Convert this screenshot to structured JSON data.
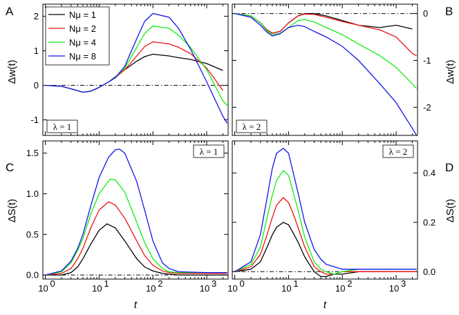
{
  "chart_data": [
    {
      "panel": "A",
      "type": "line",
      "xscale": "log",
      "xlim": [
        0.9,
        2500
      ],
      "ylim": [
        -1.45,
        2.35
      ],
      "yticks": [
        {
          "v": -1,
          "label": "-1"
        },
        {
          "v": 0,
          "label": "0"
        },
        {
          "v": 1,
          "label": "1"
        },
        {
          "v": 2,
          "label": "2"
        }
      ],
      "xtick_labels": [],
      "y_axis_side": "left",
      "ylabel": "Δw(t)",
      "xlabel": "",
      "reference_line": 0,
      "box_label": "λ = 1",
      "box_position": "bottom-left",
      "series": [
        {
          "name": "Nμ = 1",
          "color": "#000000",
          "x": [
            1,
            2,
            3,
            5,
            7,
            10,
            15,
            20,
            30,
            50,
            70,
            100,
            200,
            300,
            500,
            1000,
            2000
          ],
          "y": [
            0,
            -0.03,
            -0.1,
            -0.2,
            -0.17,
            -0.06,
            0.1,
            0.24,
            0.45,
            0.7,
            0.83,
            0.9,
            0.85,
            0.8,
            0.75,
            0.63,
            0.43
          ]
        },
        {
          "name": "Nμ = 2",
          "color": "#ee1111",
          "x": [
            1,
            2,
            3,
            5,
            7,
            10,
            15,
            20,
            30,
            50,
            70,
            100,
            200,
            300,
            500,
            1000,
            2000
          ],
          "y": [
            0,
            -0.03,
            -0.1,
            -0.2,
            -0.17,
            -0.06,
            0.1,
            0.22,
            0.45,
            0.85,
            1.12,
            1.26,
            1.2,
            1.1,
            0.92,
            0.5,
            -0.15
          ]
        },
        {
          "name": "Nμ = 4",
          "color": "#11ee11",
          "x": [
            1,
            2,
            3,
            5,
            7,
            10,
            15,
            20,
            30,
            50,
            70,
            100,
            200,
            300,
            500,
            1000,
            2000,
            2400
          ],
          "y": [
            0,
            -0.03,
            -0.1,
            -0.2,
            -0.17,
            -0.06,
            0.1,
            0.22,
            0.5,
            1.1,
            1.5,
            1.72,
            1.65,
            1.45,
            1.1,
            0.45,
            -0.45,
            -0.58
          ]
        },
        {
          "name": "Nμ = 8",
          "color": "#1111ee",
          "x": [
            1,
            2,
            3,
            5,
            7,
            10,
            15,
            20,
            30,
            50,
            70,
            100,
            200,
            300,
            500,
            1000,
            2000,
            2400
          ],
          "y": [
            0,
            -0.03,
            -0.1,
            -0.2,
            -0.17,
            -0.06,
            0.1,
            0.22,
            0.55,
            1.35,
            1.85,
            2.08,
            1.97,
            1.65,
            1.05,
            0.1,
            -0.9,
            -1.1
          ]
        }
      ]
    },
    {
      "panel": "B",
      "type": "line",
      "xscale": "log",
      "xlim": [
        0.9,
        2500
      ],
      "ylim": [
        -2.6,
        0.2
      ],
      "yticks": [
        {
          "v": -2,
          "label": "-2"
        },
        {
          "v": -1,
          "label": "-1"
        },
        {
          "v": 0,
          "label": "0"
        }
      ],
      "xtick_labels": [],
      "y_axis_side": "right",
      "ylabel": "Δw(t)",
      "xlabel": "",
      "reference_line": 0,
      "box_label": "λ = 2",
      "box_position": "bottom-left",
      "series": [
        {
          "name": "Nμ = 1",
          "color": "#000000",
          "x": [
            1,
            2,
            3,
            4,
            5,
            7,
            10,
            15,
            20,
            30,
            50,
            100,
            200,
            500,
            1000,
            2000
          ],
          "y": [
            0,
            -0.05,
            -0.2,
            -0.35,
            -0.42,
            -0.38,
            -0.2,
            -0.05,
            0,
            0,
            -0.05,
            -0.15,
            -0.25,
            -0.3,
            -0.25,
            -0.33
          ]
        },
        {
          "name": "Nμ = 2",
          "color": "#ee1111",
          "x": [
            1,
            2,
            3,
            4,
            5,
            7,
            10,
            15,
            20,
            30,
            50,
            100,
            200,
            500,
            1000,
            2000,
            2400
          ],
          "y": [
            0,
            -0.05,
            -0.2,
            -0.35,
            -0.42,
            -0.38,
            -0.2,
            -0.05,
            -0.01,
            -0.02,
            -0.08,
            -0.17,
            -0.25,
            -0.35,
            -0.5,
            -0.85,
            -0.9
          ]
        },
        {
          "name": "Nμ = 4",
          "color": "#11ee11",
          "x": [
            1,
            2,
            3,
            4,
            5,
            7,
            10,
            15,
            20,
            30,
            50,
            100,
            200,
            500,
            1000,
            2000,
            2400
          ],
          "y": [
            0,
            -0.05,
            -0.2,
            -0.37,
            -0.45,
            -0.42,
            -0.3,
            -0.15,
            -0.13,
            -0.18,
            -0.3,
            -0.45,
            -0.65,
            -0.9,
            -1.15,
            -1.5,
            -1.6
          ]
        },
        {
          "name": "Nμ = 8",
          "color": "#1111ee",
          "x": [
            1,
            2,
            3,
            4,
            5,
            7,
            10,
            15,
            20,
            30,
            50,
            100,
            200,
            500,
            1000,
            2000,
            2400
          ],
          "y": [
            0,
            -0.08,
            -0.25,
            -0.4,
            -0.48,
            -0.43,
            -0.3,
            -0.25,
            -0.28,
            -0.38,
            -0.5,
            -0.7,
            -1.0,
            -1.5,
            -1.9,
            -2.45,
            -2.6
          ]
        }
      ]
    },
    {
      "panel": "C",
      "type": "line",
      "xscale": "log",
      "xlim": [
        0.9,
        2500
      ],
      "ylim": [
        -0.05,
        1.65
      ],
      "yticks": [
        {
          "v": 0.0,
          "label": "0.0"
        },
        {
          "v": 0.5,
          "label": "0.5"
        },
        {
          "v": 1.0,
          "label": "1.0"
        },
        {
          "v": 1.5,
          "label": "1.5"
        }
      ],
      "xtick_labels": [
        "10",
        "10",
        "10",
        "10"
      ],
      "xtick_exponents": [
        "0",
        "1",
        "2",
        "3"
      ],
      "y_axis_side": "left",
      "ylabel": "ΔS(t)",
      "xlabel": "t",
      "reference_line": 0,
      "box_label": "λ = 1",
      "box_position": "top-right",
      "series": [
        {
          "name": "Nμ = 1",
          "color": "#000000",
          "x": [
            1,
            2,
            3,
            4,
            5,
            7,
            10,
            14,
            20,
            30,
            50,
            70,
            100,
            150,
            200,
            300,
            1000,
            2400
          ],
          "y": [
            0,
            0,
            0.03,
            0.1,
            0.2,
            0.38,
            0.55,
            0.63,
            0.58,
            0.42,
            0.2,
            0.1,
            0.05,
            0.02,
            0.01,
            0,
            0,
            0
          ]
        },
        {
          "name": "Nμ = 2",
          "color": "#ee1111",
          "x": [
            1,
            2,
            3,
            4,
            5,
            7,
            10,
            15,
            20,
            30,
            50,
            70,
            100,
            150,
            200,
            300,
            1000,
            2400
          ],
          "y": [
            0,
            0.02,
            0.08,
            0.2,
            0.33,
            0.58,
            0.8,
            0.9,
            0.86,
            0.7,
            0.42,
            0.24,
            0.12,
            0.05,
            0.03,
            0.02,
            0.02,
            0.02
          ]
        },
        {
          "name": "Nμ = 4",
          "color": "#11ee11",
          "x": [
            1,
            2,
            3,
            4,
            5,
            7,
            10,
            16,
            20,
            30,
            50,
            70,
            100,
            150,
            200,
            300,
            1000,
            2400
          ],
          "y": [
            0,
            0.04,
            0.15,
            0.3,
            0.45,
            0.75,
            1.0,
            1.18,
            1.17,
            1.02,
            0.65,
            0.4,
            0.2,
            0.08,
            0.04,
            0.03,
            0.03,
            0.03
          ]
        },
        {
          "name": "Nμ = 8",
          "color": "#1111ee",
          "x": [
            1,
            2,
            3,
            4,
            5,
            7,
            10,
            15,
            20,
            24,
            30,
            50,
            70,
            100,
            150,
            200,
            300,
            1000,
            2400
          ],
          "y": [
            0,
            0.05,
            0.17,
            0.33,
            0.5,
            0.85,
            1.2,
            1.45,
            1.54,
            1.55,
            1.5,
            1.15,
            0.8,
            0.42,
            0.15,
            0.08,
            0.04,
            0.03,
            0.03
          ]
        }
      ]
    },
    {
      "panel": "D",
      "type": "line",
      "xscale": "log",
      "xlim": [
        0.9,
        2500
      ],
      "ylim": [
        -0.03,
        0.53
      ],
      "yticks": [
        {
          "v": 0.0,
          "label": "0.0"
        },
        {
          "v": 0.2,
          "label": "0.2"
        },
        {
          "v": 0.4,
          "label": "0.4"
        }
      ],
      "xtick_labels": [
        "10",
        "10",
        "10",
        "10"
      ],
      "xtick_exponents": [
        "0",
        "1",
        "2",
        "3"
      ],
      "y_axis_side": "right",
      "ylabel": "ΔS(t)",
      "xlabel": "t",
      "reference_line": 0,
      "box_label": "λ = 2",
      "box_position": "top-right",
      "series": [
        {
          "name": "Nμ = 1",
          "color": "#000000",
          "x": [
            1,
            2,
            3,
            4,
            5,
            6,
            8,
            10,
            12,
            15,
            20,
            30,
            40,
            50,
            70,
            100,
            200,
            500,
            2400
          ],
          "y": [
            0,
            0.01,
            0.04,
            0.1,
            0.15,
            0.18,
            0.2,
            0.19,
            0.16,
            0.12,
            0.06,
            0.0,
            -0.02,
            -0.02,
            -0.01,
            -0.01,
            0.0,
            0.0,
            0.0
          ]
        },
        {
          "name": "Nμ = 2",
          "color": "#ee1111",
          "x": [
            1,
            2,
            3,
            4,
            5,
            6,
            8,
            10,
            12,
            15,
            20,
            30,
            40,
            50,
            70,
            100,
            200,
            500,
            2400
          ],
          "y": [
            0,
            0.02,
            0.07,
            0.15,
            0.22,
            0.27,
            0.3,
            0.28,
            0.24,
            0.18,
            0.1,
            0.02,
            0.0,
            -0.01,
            -0.01,
            0.0,
            0.0,
            0.0,
            0.0
          ]
        },
        {
          "name": "Nμ = 4",
          "color": "#11ee11",
          "x": [
            1,
            2,
            3,
            4,
            5,
            6,
            8,
            10,
            12,
            15,
            20,
            30,
            40,
            50,
            70,
            100,
            200,
            500,
            2400
          ],
          "y": [
            0,
            0.03,
            0.1,
            0.22,
            0.31,
            0.37,
            0.41,
            0.39,
            0.33,
            0.25,
            0.14,
            0.04,
            0.01,
            0.0,
            -0.01,
            0.0,
            0.01,
            0.01,
            0.01
          ]
        },
        {
          "name": "Nμ = 8",
          "color": "#1111ee",
          "x": [
            1,
            2,
            3,
            4,
            5,
            6,
            8,
            10,
            12,
            15,
            20,
            30,
            40,
            50,
            70,
            100,
            200,
            500,
            2400
          ],
          "y": [
            0,
            0.04,
            0.15,
            0.3,
            0.42,
            0.48,
            0.5,
            0.48,
            0.41,
            0.32,
            0.2,
            0.09,
            0.05,
            0.03,
            0.02,
            0.01,
            0.01,
            0.01,
            0.01
          ]
        }
      ]
    }
  ],
  "legend": {
    "position": "top-left",
    "entries": [
      {
        "label": "Nμ = 1",
        "color": "#000000"
      },
      {
        "label": "Nμ = 2",
        "color": "#ee1111"
      },
      {
        "label": "Nμ = 4",
        "color": "#11ee11"
      },
      {
        "label": "Nμ = 8",
        "color": "#1111ee"
      }
    ]
  },
  "panel_letters": [
    "A",
    "B",
    "C",
    "D"
  ]
}
